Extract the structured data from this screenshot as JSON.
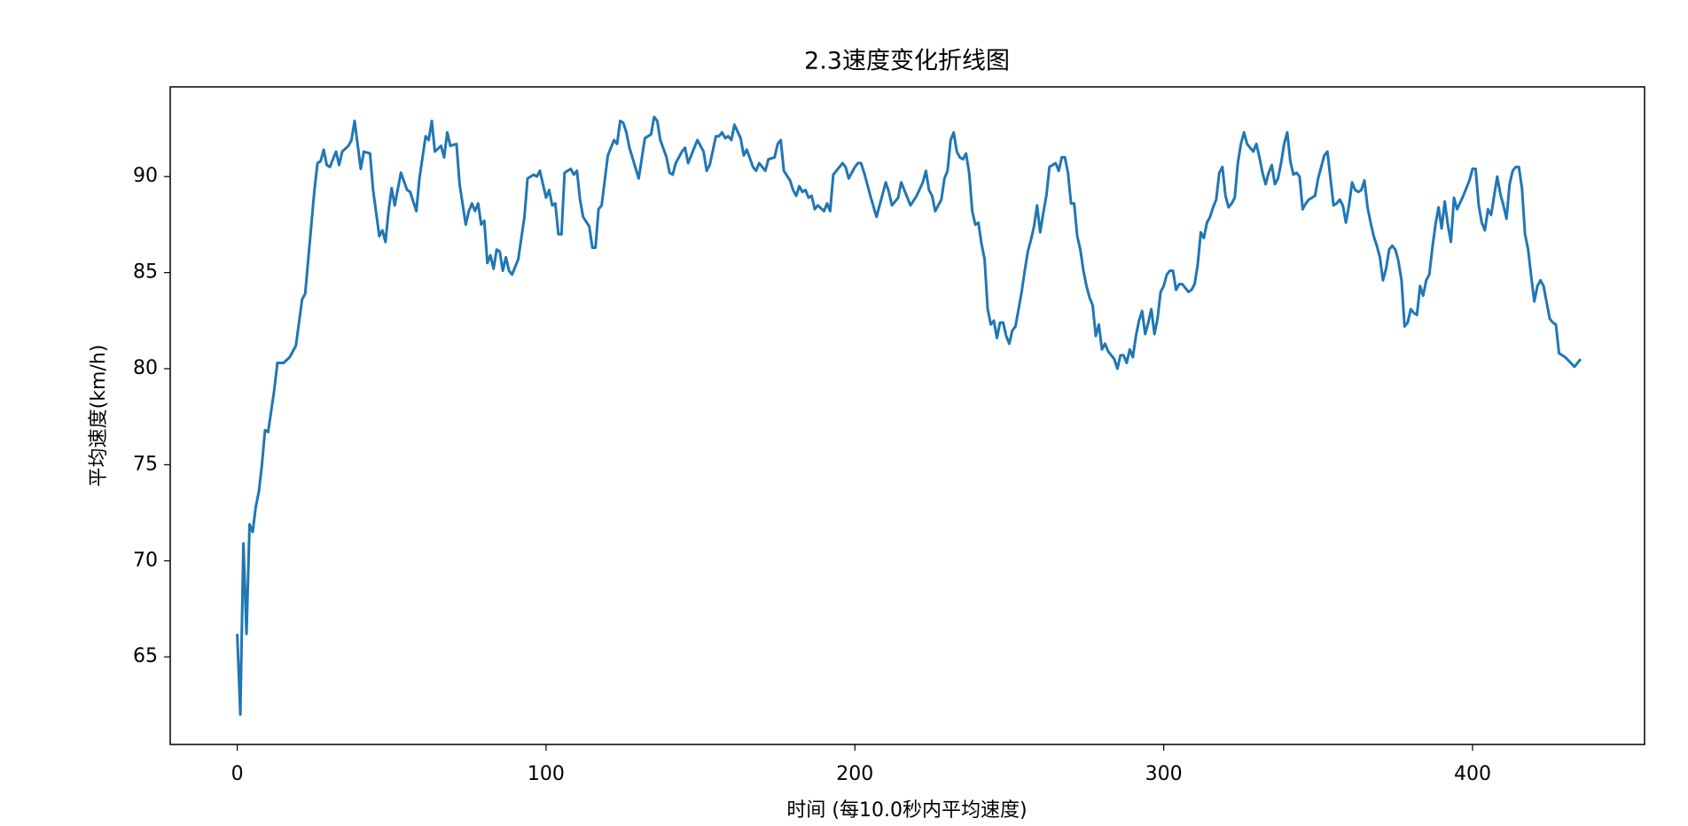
{
  "chart_data": {
    "type": "line",
    "title": "2.3速度变化折线图",
    "x_label": "时间 (每10.0秒内平均速度)",
    "y_label": "平均速度(km/h)",
    "color": "#1f77b4",
    "xlim": [
      -21.7,
      455.7
    ],
    "ylim": [
      60.44,
      94.67
    ],
    "xticks": [
      0,
      100,
      200,
      300,
      400
    ],
    "yticks": [
      65,
      70,
      75,
      80,
      85,
      90
    ],
    "grid": false,
    "x": [
      0,
      1,
      2,
      3,
      4,
      5,
      6,
      7,
      8,
      9,
      10,
      12,
      13,
      15,
      17,
      19,
      21,
      22,
      25,
      26,
      27,
      28,
      29,
      30,
      32,
      33,
      34,
      36,
      37,
      38,
      40,
      41,
      43,
      44,
      46,
      47,
      48,
      49,
      50,
      51,
      53,
      55,
      56,
      58,
      59,
      61,
      62,
      63,
      64,
      66,
      67,
      68,
      69,
      71,
      72,
      74,
      75,
      76,
      77,
      78,
      79,
      80,
      81,
      82,
      83,
      84,
      85,
      86,
      87,
      88,
      89,
      91,
      93,
      94,
      95,
      96,
      97,
      98,
      100,
      101,
      102,
      103,
      104,
      105,
      106,
      108,
      109,
      110,
      111,
      112,
      114,
      115,
      116,
      117,
      118,
      120,
      122,
      123,
      124,
      125,
      126,
      127,
      130,
      132,
      134,
      135,
      136,
      137,
      139,
      140,
      141,
      142,
      144,
      145,
      146,
      148,
      149,
      151,
      152,
      153,
      155,
      156,
      157,
      158,
      159,
      160,
      161,
      163,
      164,
      165,
      167,
      168,
      169,
      171,
      172,
      174,
      175,
      176,
      177,
      179,
      180,
      181,
      182,
      183,
      184,
      185,
      186,
      187,
      188,
      190,
      191,
      192,
      193,
      195,
      196,
      197,
      198,
      200,
      201,
      202,
      203,
      205,
      207,
      208,
      210,
      211,
      212,
      214,
      215,
      217,
      218,
      220,
      222,
      223,
      224,
      225,
      226,
      228,
      229,
      230,
      231,
      232,
      233,
      234,
      235,
      236,
      237,
      238,
      239,
      240,
      241,
      242,
      243,
      244,
      245,
      246,
      247,
      248,
      249,
      250,
      251,
      252,
      254,
      255,
      256,
      257,
      258,
      259,
      260,
      261,
      262,
      263,
      265,
      266,
      267,
      268,
      269,
      270,
      271,
      272,
      273,
      274,
      275,
      276,
      277,
      278,
      279,
      280,
      281,
      282,
      284,
      285,
      286,
      287,
      288,
      289,
      290,
      291,
      292,
      293,
      294,
      295,
      296,
      297,
      298,
      299,
      300,
      301,
      302,
      303,
      304,
      305,
      306,
      308,
      309,
      310,
      311,
      312,
      313,
      314,
      315,
      316,
      317,
      318,
      319,
      320,
      321,
      322,
      323,
      324,
      325,
      326,
      327,
      329,
      330,
      331,
      332,
      333,
      334,
      335,
      336,
      337,
      338,
      339,
      340,
      341,
      342,
      343,
      344,
      345,
      346,
      347,
      349,
      350,
      351,
      352,
      353,
      354,
      355,
      356,
      357,
      358,
      359,
      360,
      361,
      362,
      363,
      364,
      365,
      366,
      367,
      368,
      369,
      370,
      371,
      372,
      373,
      374,
      375,
      376,
      377,
      378,
      379,
      380,
      381,
      382,
      383,
      384,
      385,
      386,
      387,
      388,
      389,
      390,
      391,
      392,
      393,
      394,
      395,
      397,
      399,
      400,
      401,
      402,
      403,
      404,
      405,
      406,
      407,
      408,
      409,
      410,
      411,
      412,
      413,
      414,
      415,
      416,
      417,
      418,
      419,
      420,
      421,
      422,
      423,
      425,
      426,
      427,
      428,
      430,
      433,
      435
    ],
    "values": [
      66.2,
      62.0,
      70.9,
      66.2,
      71.9,
      71.5,
      72.8,
      73.6,
      75.0,
      76.8,
      76.7,
      78.9,
      80.3,
      80.3,
      80.6,
      81.2,
      83.6,
      83.9,
      89.3,
      90.7,
      90.8,
      91.4,
      90.6,
      90.5,
      91.3,
      90.6,
      91.3,
      91.6,
      91.9,
      92.9,
      90.4,
      91.3,
      91.2,
      89.3,
      86.9,
      87.2,
      86.6,
      88.2,
      89.4,
      88.5,
      90.2,
      89.3,
      89.2,
      88.2,
      89.9,
      92.1,
      91.9,
      92.9,
      91.3,
      91.6,
      91.0,
      92.3,
      91.6,
      91.7,
      89.6,
      87.5,
      88.2,
      88.6,
      88.2,
      88.6,
      87.5,
      87.7,
      85.5,
      85.9,
      85.2,
      86.2,
      86.1,
      85.1,
      85.8,
      85.1,
      84.9,
      85.7,
      87.9,
      89.9,
      90.0,
      90.1,
      90.0,
      90.3,
      88.9,
      89.3,
      88.5,
      88.6,
      87.0,
      87.0,
      90.2,
      90.4,
      90.1,
      90.3,
      88.8,
      87.9,
      87.4,
      86.3,
      86.3,
      88.3,
      88.5,
      91.1,
      91.9,
      91.7,
      92.9,
      92.8,
      92.3,
      91.5,
      89.9,
      92.0,
      92.2,
      93.1,
      92.9,
      91.9,
      91.0,
      90.2,
      90.1,
      90.7,
      91.3,
      91.5,
      90.7,
      91.5,
      91.9,
      91.3,
      90.3,
      90.6,
      92.1,
      92.1,
      92.3,
      92.0,
      92.1,
      91.9,
      92.7,
      92.0,
      91.1,
      91.4,
      90.5,
      90.3,
      90.7,
      90.3,
      90.9,
      91.0,
      91.7,
      91.9,
      90.3,
      89.8,
      89.3,
      89.0,
      89.5,
      89.2,
      89.3,
      88.9,
      89.0,
      88.3,
      88.5,
      88.2,
      88.6,
      88.2,
      90.1,
      90.5,
      90.7,
      90.5,
      89.9,
      90.5,
      90.7,
      90.7,
      90.2,
      89.0,
      87.9,
      88.5,
      89.7,
      89.2,
      88.5,
      88.9,
      89.7,
      88.9,
      88.5,
      89.0,
      89.7,
      90.3,
      89.3,
      89.0,
      88.2,
      88.8,
      89.9,
      90.3,
      91.9,
      92.3,
      91.3,
      91.0,
      90.9,
      91.2,
      90.2,
      88.2,
      87.5,
      87.6,
      86.5,
      85.7,
      83.1,
      82.3,
      82.5,
      81.6,
      82.4,
      82.4,
      81.7,
      81.3,
      82.0,
      82.2,
      84.0,
      85.1,
      86.1,
      86.7,
      87.4,
      88.5,
      87.1,
      88.1,
      89.0,
      90.5,
      90.7,
      90.3,
      91.0,
      91.0,
      90.2,
      88.6,
      88.6,
      86.9,
      86.2,
      85.1,
      84.3,
      83.7,
      83.3,
      81.7,
      82.3,
      81.0,
      81.3,
      80.9,
      80.5,
      80.0,
      80.7,
      80.7,
      80.3,
      81.0,
      80.6,
      81.7,
      82.5,
      83.0,
      81.8,
      82.4,
      83.1,
      81.8,
      82.6,
      84.0,
      84.3,
      84.9,
      85.1,
      85.1,
      84.1,
      84.4,
      84.4,
      84.0,
      84.1,
      84.4,
      85.4,
      87.1,
      86.8,
      87.6,
      87.9,
      88.4,
      88.8,
      90.2,
      90.5,
      89.0,
      88.4,
      88.6,
      88.9,
      90.7,
      91.7,
      92.3,
      91.7,
      91.3,
      91.7,
      91.0,
      90.2,
      89.6,
      90.2,
      90.6,
      89.6,
      89.9,
      90.7,
      91.7,
      92.3,
      90.8,
      90.1,
      90.2,
      90.0,
      88.3,
      88.6,
      88.8,
      89.0,
      89.9,
      90.5,
      91.1,
      91.3,
      89.9,
      88.5,
      88.6,
      88.8,
      88.5,
      87.6,
      88.5,
      89.7,
      89.3,
      89.2,
      89.3,
      89.8,
      88.4,
      87.6,
      86.9,
      86.4,
      85.8,
      84.6,
      85.2,
      86.2,
      86.4,
      86.2,
      85.6,
      84.6,
      82.2,
      82.4,
      83.1,
      82.9,
      82.8,
      84.3,
      83.8,
      84.6,
      84.9,
      86.3,
      87.5,
      88.4,
      87.3,
      88.7,
      87.5,
      86.6,
      88.9,
      88.3,
      89.0,
      89.8,
      90.4,
      90.4,
      88.5,
      87.6,
      87.2,
      88.3,
      88.0,
      89.0,
      90.0,
      89.1,
      88.5,
      87.8,
      89.6,
      90.3,
      90.5,
      90.5,
      89.4,
      87.0,
      86.2,
      84.8,
      83.5,
      84.3,
      84.6,
      84.3,
      82.6,
      82.4,
      82.3,
      80.8,
      80.6,
      80.1,
      80.5
    ]
  }
}
